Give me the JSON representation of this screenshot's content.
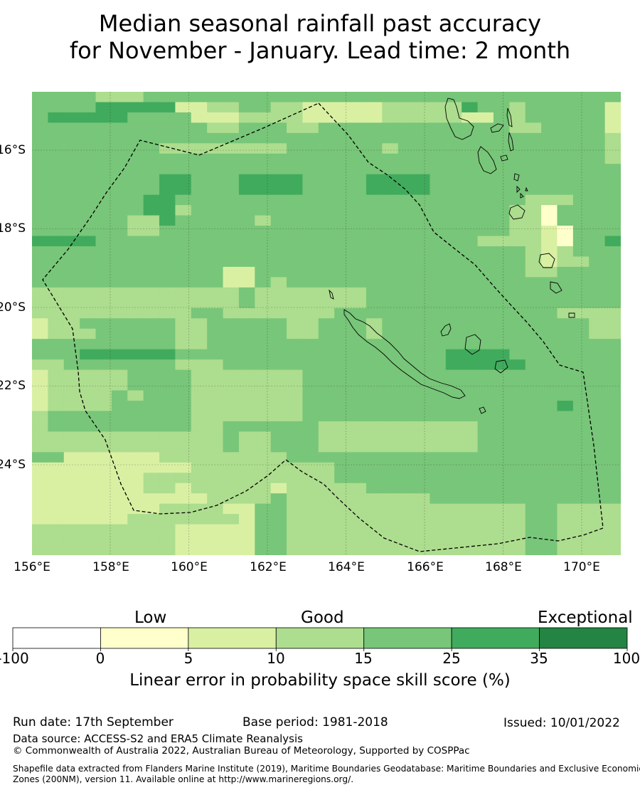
{
  "title": {
    "line1": "Median seasonal rainfall past accuracy",
    "line2": "for November - January. Lead time: 2 month"
  },
  "map": {
    "lat_ticks": [
      "16°S",
      "18°S",
      "20°S",
      "22°S",
      "24°S"
    ],
    "lon_ticks": [
      "156°E",
      "158°E",
      "160°E",
      "162°E",
      "164°E",
      "166°E",
      "168°E",
      "170°E"
    ],
    "grid": true,
    "boundary_style": "dashed",
    "category_colors": {
      "0-5": "#ffffcc",
      "5-10": "#d9f0a3",
      "10-15": "#addd8e",
      "15-25": "#78c679",
      "25-35": "#41ab5d",
      "35-100": "#238443"
    },
    "skill_grid_code": [
      "4444333444444444444444444444444444444",
      "4444555552233443322222333335443444442",
      "4555554444222333322222333332243444442",
      "4444444444433444334444444444443344442",
      "4444444444444444444444444444444444443",
      "4444444433333333444444344444444444443",
      "4444444444444444444444444444444444443",
      "4444444444444444444444444444444444444",
      "4444444455444555544445555444444444444",
      "4444444455444555544445555444444444444",
      "4444444554444444444444444444444333444",
      "4444444553444444444444444444443314444",
      "4444443354444434444444444444443314444",
      "4444443344444444444444444444443321444",
      "5555444444444444444444444444333321445",
      "4444444444444444444444444444444323444",
      "4444444444444444444444444444444323344",
      "4444444444442244444444444444444334444",
      "4444444444442243444444444444444444444",
      "3333333333333433333334444444444444444",
      "3333333333333433333334444444444444444",
      "3333333333443333333444444444444443333",
      "2334444443344444334443444444444444433",
      "2333444443344444334443444444444444433",
      "4444444443344444444444444444444444444",
      "4445555554444444444444444455554444444",
      "3344444443334444444444444455555444444",
      "2333334444333333344444444444444444444",
      "2333334444333333344444444444444444444",
      "2333343444333333344444444444444444444",
      "2333344444333333344444444444444445444",
      "3444444444333333344444444444444444444",
      "3444444444334444443333333333444444444",
      "3333333333334334443333333333444444444",
      "3333333333334334443333333333444444444",
      "4422222233333333444444444444444444444",
      "2222222222333333333444444444444444444",
      "2222222333333333333444444444444444444",
      "2222222332333332333334444444444444444",
      "2222222222233334333333333444444444444",
      "2222222233332244333333333333333443333",
      "2222223333333244333333333333333443333",
      "3333333332222244333333333333333443333",
      "3333333332222244333333333333333443333",
      "3333333332222244333333333333333443333"
    ]
  },
  "colorbar": {
    "categories": [
      "Low",
      "Good",
      "Exceptional"
    ],
    "ticks": [
      "-100",
      "0",
      "5",
      "10",
      "15",
      "25",
      "35",
      "100"
    ],
    "colors": [
      "#ffffff",
      "#ffffcc",
      "#d9f0a3",
      "#addd8e",
      "#78c679",
      "#41ab5d",
      "#238443"
    ],
    "label": "Linear error in probability space skill score (%)"
  },
  "footer": {
    "run_date": "Run date: 17th September",
    "base_period": "Base period: 1981-2018",
    "issued": "Issued: 10/01/2022",
    "data_source": "Data source: ACCESS-S2 and ERA5 Climate Reanalysis",
    "copyright": "© Commonwealth of Australia 2022, Australian Bureau of Meteorology, Supported by COSPPac",
    "shapefile_line1": "Shapefile data extracted from Flanders Marine Institute (2019), Maritime Boundaries Geodatabase: Maritime Boundaries and Exclusive Economic",
    "shapefile_line2": "Zones (200NM), version 11. Available online at http://www.marineregions.org/."
  }
}
